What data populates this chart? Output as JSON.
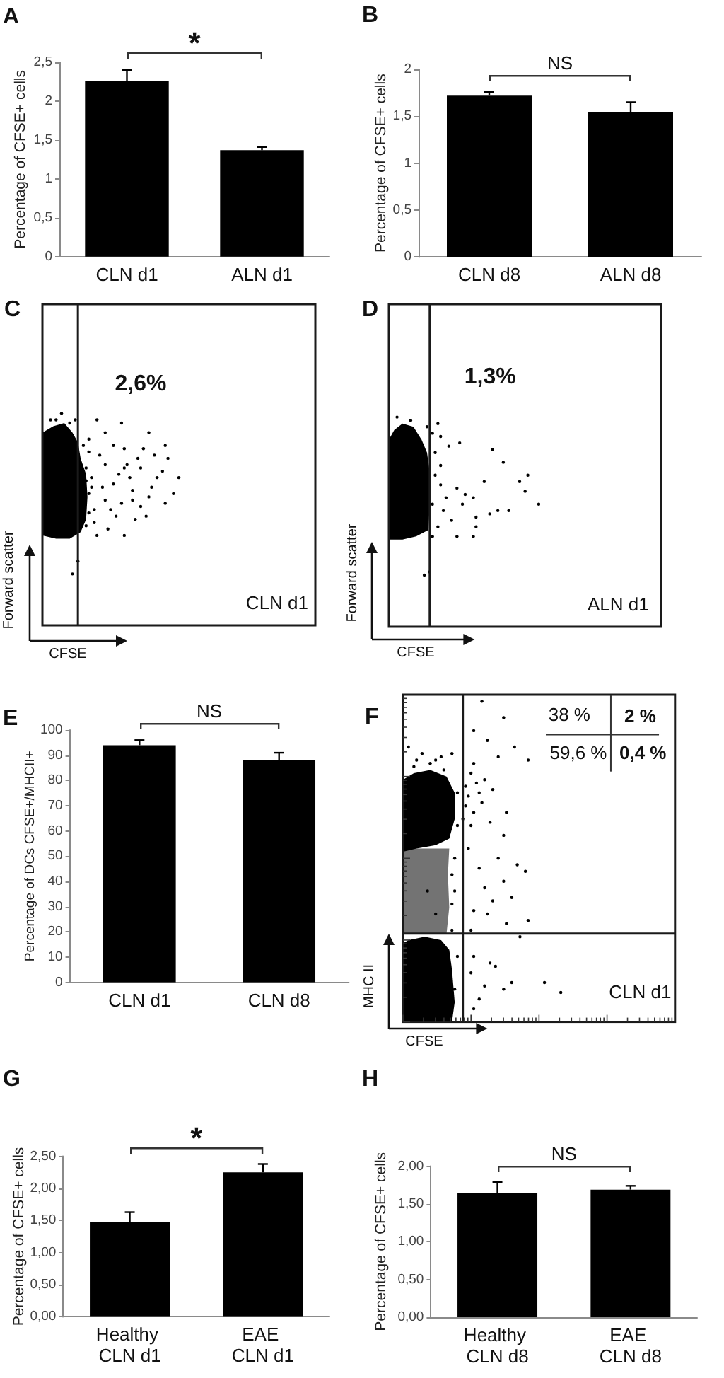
{
  "chart_data": [
    {
      "type": "bar",
      "title": "A",
      "ylabel": "Percentage of CFSE+ cells",
      "categories": [
        "CLN d1",
        "ALN d1"
      ],
      "values": [
        2.26,
        1.37
      ],
      "errors": [
        [
          2.26,
          2.4
        ],
        [
          1.37,
          1.41
        ]
      ],
      "color": "#000000",
      "ylim": [
        0,
        2.5
      ],
      "yticks": [
        0,
        {
          "value": 0.5,
          "label": "0,5"
        },
        1,
        {
          "value": 1.5,
          "label": "1,5"
        },
        2,
        {
          "value": 2.5,
          "label": "2,5"
        }
      ],
      "annotations": [
        "*"
      ]
    },
    {
      "type": "bar",
      "title": "B",
      "ylabel": "Percentage of CFSE+ cells",
      "categories": [
        "CLN d8",
        "ALN d8"
      ],
      "values": [
        1.72,
        1.54
      ],
      "errors": [
        [
          1.72,
          1.76
        ],
        [
          1.54,
          1.65
        ]
      ],
      "color": "#000000",
      "ylim": [
        0,
        2
      ],
      "yticks": [
        0,
        {
          "value": 0.5,
          "label": "0,5"
        },
        1,
        {
          "value": 1.5,
          "label": "1,5"
        },
        2
      ],
      "annotations": [
        "NS"
      ]
    },
    {
      "type": "other",
      "title": "C",
      "xlabel": "CFSE",
      "ylabel": "Forward scatter",
      "annotations": [
        "2,6%",
        "CLN d1"
      ]
    },
    {
      "type": "other",
      "title": "D",
      "xlabel": "CFSE",
      "ylabel": "Forward scatter",
      "annotations": [
        "1,3%",
        "ALN d1"
      ]
    },
    {
      "type": "bar",
      "title": "E",
      "ylabel": "Percentage of DCs CFSE+/MHCII+",
      "categories": [
        "CLN d1",
        "CLN d8"
      ],
      "values": [
        94,
        88
      ],
      "errors": [
        [
          94,
          96
        ],
        [
          88,
          91
        ]
      ],
      "color": "#000000",
      "ylim": [
        0,
        100
      ],
      "yticks": [
        0,
        10,
        20,
        30,
        40,
        50,
        60,
        70,
        80,
        90,
        100
      ],
      "annotations": [
        "NS"
      ]
    },
    {
      "type": "other",
      "title": "F",
      "xlabel": "CFSE",
      "ylabel": "MHC II",
      "annotations": [
        "38 %",
        "2 %",
        "59,6 %",
        "0,4 %",
        "CLN d1"
      ]
    },
    {
      "type": "bar",
      "title": "G",
      "ylabel": "Percentage of CFSE+ cells",
      "categories": [
        "Healthy CLN d1",
        "EAE CLN d1"
      ],
      "values": [
        1.47,
        2.25
      ],
      "errors": [
        [
          1.47,
          1.63
        ],
        [
          2.25,
          2.38
        ]
      ],
      "color": "#000000",
      "ylim": [
        0,
        2.5
      ],
      "yticks": [
        {
          "value": 0,
          "label": "0,00"
        },
        {
          "value": 0.5,
          "label": "0,50"
        },
        {
          "value": 1,
          "label": "1,00"
        },
        {
          "value": 1.5,
          "label": "1,50"
        },
        {
          "value": 2,
          "label": "2,00"
        },
        {
          "value": 2.5,
          "label": "2,50"
        }
      ],
      "annotations": [
        "*"
      ]
    },
    {
      "type": "bar",
      "title": "H",
      "ylabel": "Percentage of CFSE+ cells",
      "categories": [
        "Healthy CLN d8",
        "EAE CLN d8"
      ],
      "values": [
        1.64,
        1.69
      ],
      "errors": [
        [
          1.64,
          1.79
        ],
        [
          1.69,
          1.74
        ]
      ],
      "color": "#000000",
      "ylim": [
        0,
        2
      ],
      "yticks": [
        {
          "value": 0,
          "label": "0,00"
        },
        {
          "value": 0.5,
          "label": "0,50"
        },
        {
          "value": 1,
          "label": "1,00"
        },
        {
          "value": 1.5,
          "label": "1,50"
        },
        {
          "value": 2,
          "label": "2,00"
        }
      ],
      "annotations": [
        "NS"
      ]
    }
  ]
}
